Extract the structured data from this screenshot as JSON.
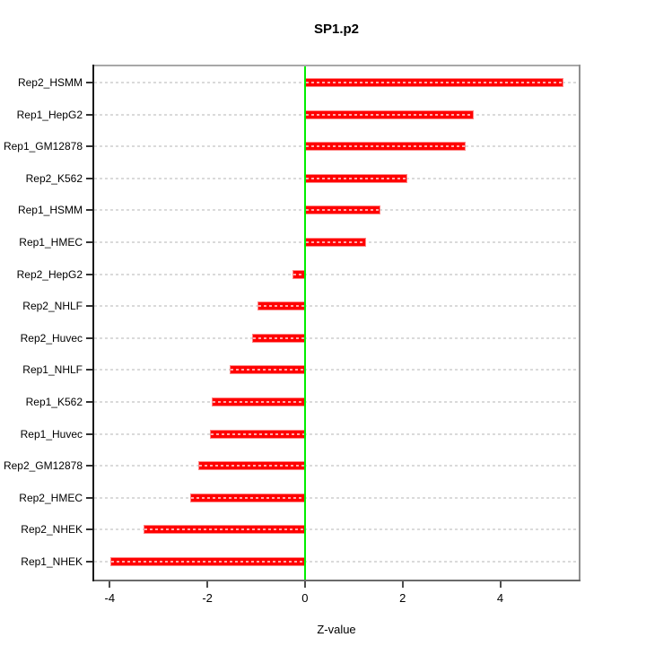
{
  "chart_data": {
    "type": "bar",
    "orientation": "horizontal",
    "title": "SP1.p2",
    "xlabel": "Z-value",
    "ylabel": "",
    "xlim": [
      -4.355,
      5.645
    ],
    "xticks": [
      -4,
      -2,
      0,
      2,
      4
    ],
    "grid": "dotted-horizontal-per-row",
    "legend_position": "none",
    "zero_reference_line": 0,
    "colors": {
      "bar_fill": "#ff0000",
      "bar_edge": "#ff8585",
      "bar_inner_dash": "#ffaaaa",
      "zero_line": "#00ee00",
      "grid_line": "#dadada",
      "axis_text": "#000000"
    },
    "rows": [
      {
        "label": "Rep2_HSMM",
        "value": 5.3
      },
      {
        "label": "Rep1_HepG2",
        "value": 3.45
      },
      {
        "label": "Rep1_GM12878",
        "value": 3.3
      },
      {
        "label": "Rep2_K562",
        "value": 2.1
      },
      {
        "label": "Rep1_HSMM",
        "value": 1.55
      },
      {
        "label": "Rep1_HMEC",
        "value": 1.25
      },
      {
        "label": "Rep2_HepG2",
        "value": -0.26
      },
      {
        "label": "Rep2_NHLF",
        "value": -0.98
      },
      {
        "label": "Rep2_Huvec",
        "value": -1.09
      },
      {
        "label": "Rep1_NHLF",
        "value": -1.54
      },
      {
        "label": "Rep1_K562",
        "value": -1.91
      },
      {
        "label": "Rep1_Huvec",
        "value": -1.94
      },
      {
        "label": "Rep2_GM12878",
        "value": -2.18
      },
      {
        "label": "Rep2_HMEC",
        "value": -2.35
      },
      {
        "label": "Rep2_NHEK",
        "value": -3.3
      },
      {
        "label": "Rep1_NHEK",
        "value": -3.98
      }
    ]
  }
}
